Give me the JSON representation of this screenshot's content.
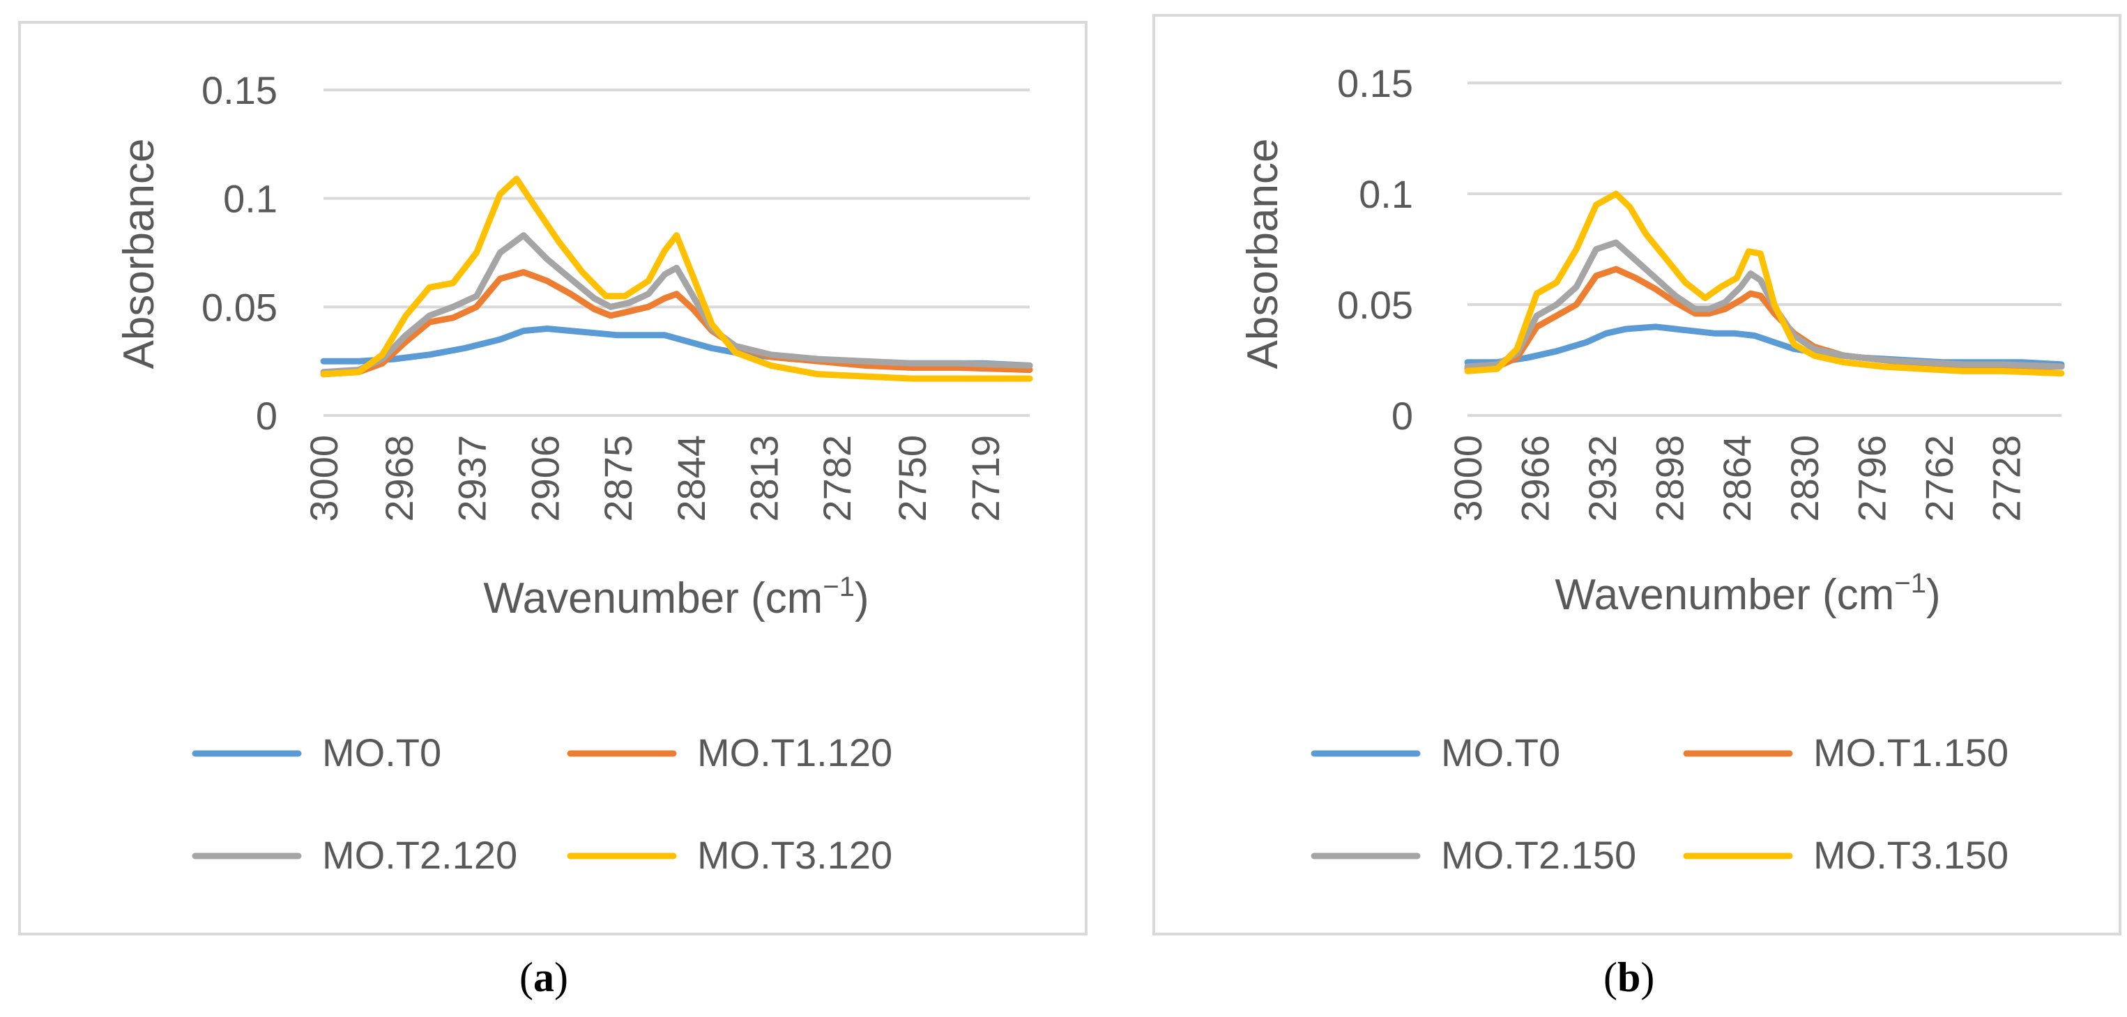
{
  "chart_data": [
    {
      "type": "line",
      "panel_label": "a",
      "xlabel_main": "Wavenumber (cm",
      "xlabel_sup": "−1",
      "xlabel_close": ")",
      "ylabel": "Absorbance",
      "xlim": [
        3000,
        2700
      ],
      "ylim": [
        0,
        0.15
      ],
      "y_ticks": [
        "0",
        "0.05",
        "0.1",
        "0.15"
      ],
      "y_tick_values": [
        0,
        0.05,
        0.1,
        0.15
      ],
      "x_ticks": [
        "3000",
        "2968",
        "2937",
        "2906",
        "2875",
        "2844",
        "2813",
        "2782",
        "2750",
        "2719"
      ],
      "x_tick_values": [
        3000,
        2968,
        2937,
        2906,
        2875,
        2844,
        2813,
        2782,
        2750,
        2719
      ],
      "grid": true,
      "legend_position": "bottom",
      "series": [
        {
          "name": "MO.T0",
          "color": "#5B9BD5",
          "x": [
            3000,
            2985,
            2970,
            2955,
            2940,
            2925,
            2915,
            2905,
            2895,
            2885,
            2875,
            2865,
            2855,
            2845,
            2835,
            2820,
            2800,
            2780,
            2760,
            2740,
            2720,
            2700
          ],
          "y": [
            0.025,
            0.025,
            0.026,
            0.028,
            0.031,
            0.035,
            0.039,
            0.04,
            0.039,
            0.038,
            0.037,
            0.037,
            0.037,
            0.034,
            0.031,
            0.028,
            0.026,
            0.025,
            0.024,
            0.024,
            0.024,
            0.023
          ]
        },
        {
          "name": "MO.T1.120",
          "color": "#ED7D31",
          "x": [
            3000,
            2985,
            2975,
            2965,
            2955,
            2945,
            2935,
            2925,
            2915,
            2905,
            2895,
            2885,
            2878,
            2870,
            2862,
            2855,
            2850,
            2843,
            2835,
            2825,
            2810,
            2790,
            2770,
            2750,
            2730,
            2700
          ],
          "y": [
            0.019,
            0.02,
            0.024,
            0.034,
            0.043,
            0.045,
            0.05,
            0.063,
            0.066,
            0.062,
            0.056,
            0.049,
            0.046,
            0.048,
            0.05,
            0.054,
            0.056,
            0.049,
            0.039,
            0.032,
            0.027,
            0.025,
            0.023,
            0.022,
            0.022,
            0.021
          ]
        },
        {
          "name": "MO.T2.120",
          "color": "#A5A5A5",
          "x": [
            3000,
            2985,
            2975,
            2965,
            2955,
            2945,
            2935,
            2925,
            2915,
            2905,
            2895,
            2885,
            2878,
            2870,
            2862,
            2855,
            2850,
            2843,
            2835,
            2825,
            2810,
            2790,
            2770,
            2750,
            2730,
            2700
          ],
          "y": [
            0.02,
            0.021,
            0.026,
            0.037,
            0.046,
            0.05,
            0.055,
            0.075,
            0.083,
            0.072,
            0.063,
            0.054,
            0.05,
            0.052,
            0.056,
            0.065,
            0.068,
            0.055,
            0.04,
            0.032,
            0.028,
            0.026,
            0.025,
            0.024,
            0.024,
            0.023
          ]
        },
        {
          "name": "MO.T3.120",
          "color": "#FFC000",
          "x": [
            3000,
            2985,
            2975,
            2965,
            2955,
            2945,
            2935,
            2925,
            2918,
            2910,
            2900,
            2890,
            2880,
            2872,
            2862,
            2855,
            2850,
            2843,
            2835,
            2825,
            2810,
            2790,
            2770,
            2750,
            2730,
            2700
          ],
          "y": [
            0.019,
            0.02,
            0.028,
            0.046,
            0.059,
            0.061,
            0.075,
            0.102,
            0.109,
            0.096,
            0.08,
            0.066,
            0.055,
            0.055,
            0.062,
            0.076,
            0.083,
            0.064,
            0.042,
            0.029,
            0.023,
            0.019,
            0.018,
            0.017,
            0.017,
            0.017
          ]
        }
      ]
    },
    {
      "type": "line",
      "panel_label": "b",
      "xlabel_main": "Wavenumber (cm",
      "xlabel_sup": "−1",
      "xlabel_close": ")",
      "ylabel": "Absorbance",
      "xlim": [
        3000,
        2700
      ],
      "ylim": [
        0,
        0.15
      ],
      "y_ticks": [
        "0",
        "0.05",
        "0.1",
        "0.15"
      ],
      "y_tick_values": [
        0,
        0.05,
        0.1,
        0.15
      ],
      "x_ticks": [
        "3000",
        "2966",
        "2932",
        "2898",
        "2864",
        "2830",
        "2796",
        "2762",
        "2728"
      ],
      "x_tick_values": [
        3000,
        2966,
        2932,
        2898,
        2864,
        2830,
        2796,
        2762,
        2728
      ],
      "grid": true,
      "legend_position": "bottom",
      "series": [
        {
          "name": "MO.T0",
          "color": "#5B9BD5",
          "x": [
            3000,
            2985,
            2970,
            2955,
            2940,
            2930,
            2920,
            2905,
            2895,
            2885,
            2875,
            2865,
            2855,
            2845,
            2835,
            2820,
            2800,
            2780,
            2760,
            2740,
            2720,
            2700
          ],
          "y": [
            0.024,
            0.024,
            0.026,
            0.029,
            0.033,
            0.037,
            0.039,
            0.04,
            0.039,
            0.038,
            0.037,
            0.037,
            0.036,
            0.033,
            0.03,
            0.028,
            0.026,
            0.025,
            0.024,
            0.024,
            0.024,
            0.023
          ]
        },
        {
          "name": "MO.T1.150",
          "color": "#ED7D31",
          "x": [
            3000,
            2985,
            2975,
            2965,
            2955,
            2945,
            2935,
            2925,
            2915,
            2905,
            2895,
            2885,
            2878,
            2870,
            2862,
            2857,
            2852,
            2845,
            2835,
            2825,
            2810,
            2790,
            2770,
            2750,
            2730,
            2700
          ],
          "y": [
            0.021,
            0.022,
            0.026,
            0.04,
            0.045,
            0.05,
            0.063,
            0.066,
            0.062,
            0.057,
            0.051,
            0.046,
            0.046,
            0.048,
            0.052,
            0.055,
            0.054,
            0.046,
            0.037,
            0.031,
            0.027,
            0.025,
            0.023,
            0.022,
            0.022,
            0.022
          ]
        },
        {
          "name": "MO.T2.150",
          "color": "#A5A5A5",
          "x": [
            3000,
            2985,
            2975,
            2965,
            2955,
            2945,
            2935,
            2925,
            2915,
            2905,
            2895,
            2885,
            2878,
            2870,
            2862,
            2857,
            2852,
            2845,
            2835,
            2825,
            2810,
            2790,
            2770,
            2750,
            2730,
            2700
          ],
          "y": [
            0.022,
            0.023,
            0.028,
            0.045,
            0.05,
            0.058,
            0.075,
            0.078,
            0.07,
            0.062,
            0.054,
            0.048,
            0.048,
            0.051,
            0.058,
            0.064,
            0.061,
            0.049,
            0.036,
            0.03,
            0.027,
            0.025,
            0.024,
            0.023,
            0.023,
            0.022
          ]
        },
        {
          "name": "MO.T3.150",
          "color": "#FFC000",
          "x": [
            3000,
            2985,
            2975,
            2965,
            2955,
            2945,
            2935,
            2925,
            2918,
            2910,
            2900,
            2890,
            2880,
            2872,
            2864,
            2858,
            2852,
            2845,
            2835,
            2825,
            2810,
            2790,
            2770,
            2750,
            2730,
            2700
          ],
          "y": [
            0.02,
            0.021,
            0.03,
            0.055,
            0.06,
            0.075,
            0.095,
            0.1,
            0.094,
            0.082,
            0.071,
            0.06,
            0.053,
            0.058,
            0.062,
            0.074,
            0.073,
            0.05,
            0.032,
            0.027,
            0.024,
            0.022,
            0.021,
            0.02,
            0.02,
            0.019
          ]
        }
      ]
    }
  ]
}
